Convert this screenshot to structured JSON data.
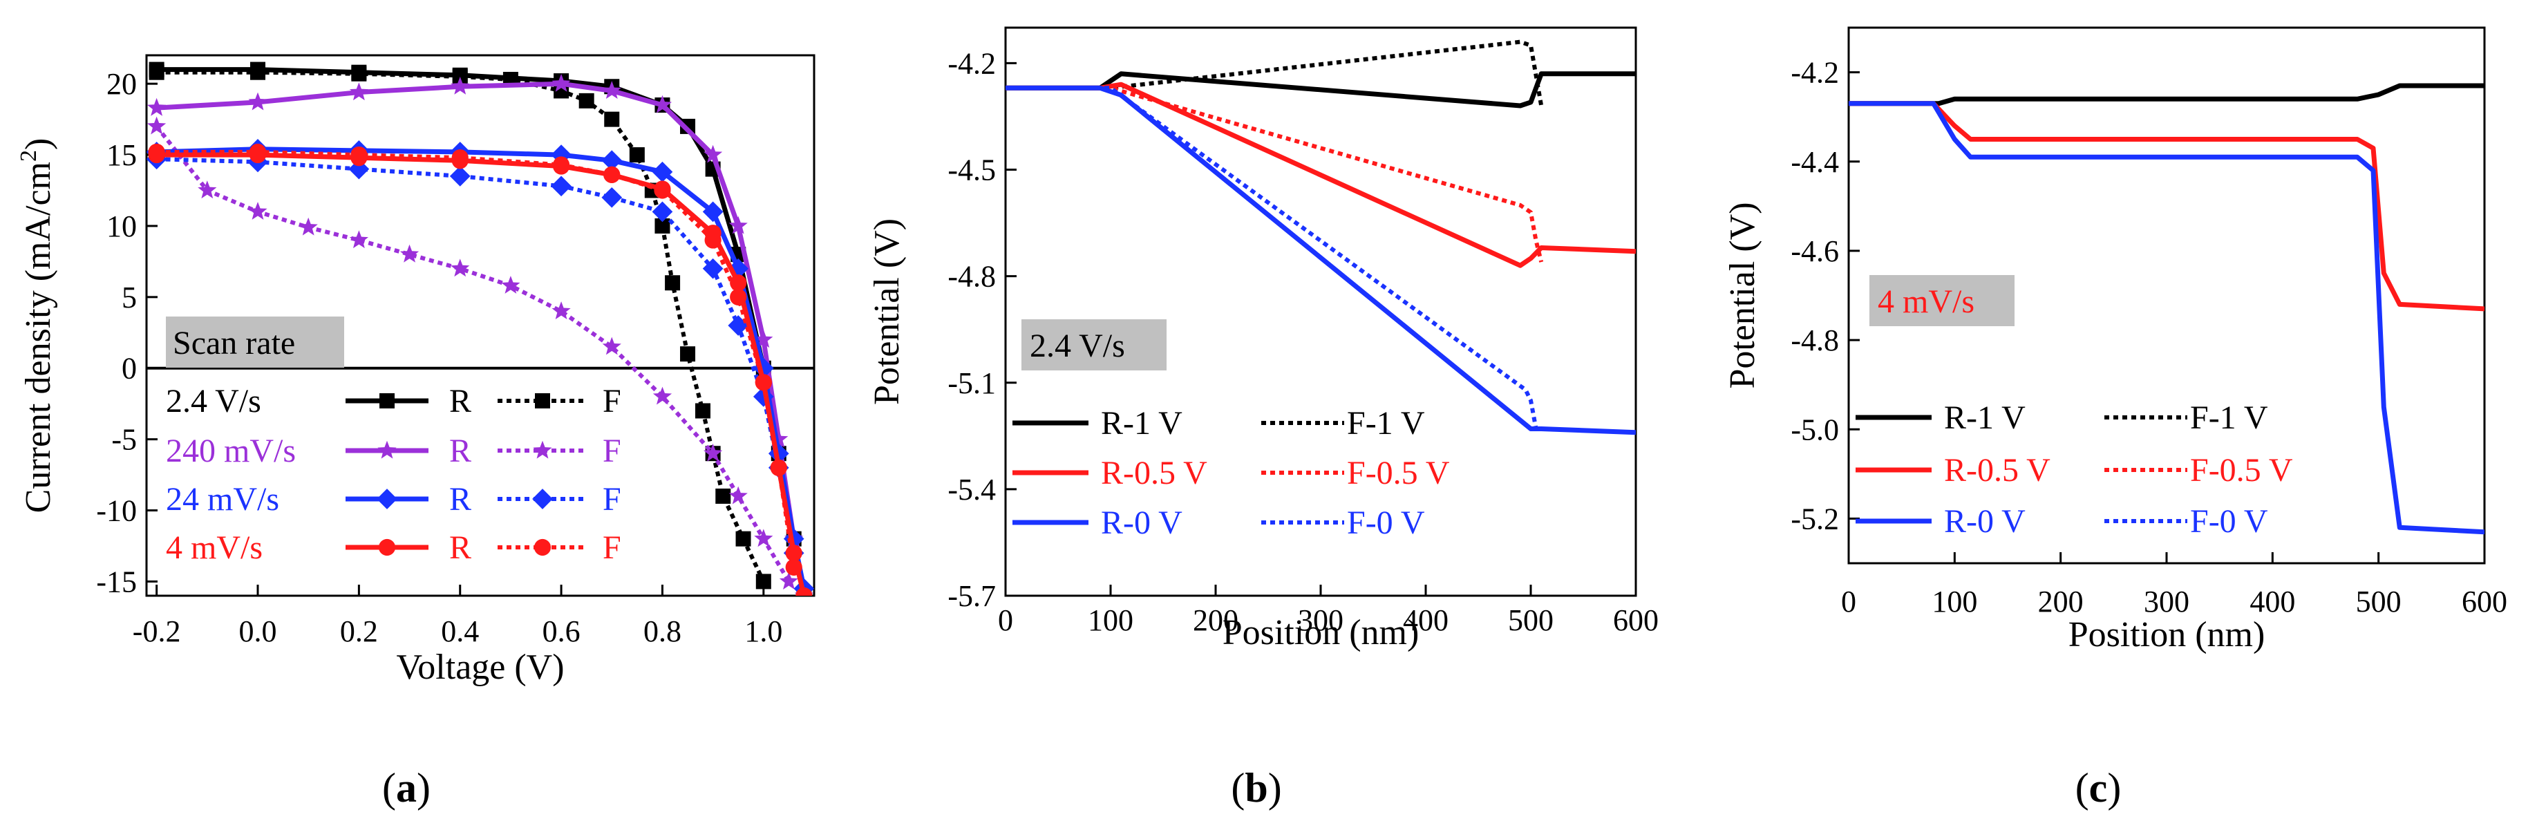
{
  "colors": {
    "black": "#000000",
    "purple": "#9b30d9",
    "blue": "#1a33ff",
    "red": "#ff1a1a",
    "annot_bg": "#c0c0c0"
  },
  "labels": {
    "a": "(a)",
    "b": "(b)",
    "c": "(c)"
  },
  "chart_data": [
    {
      "type": "line",
      "xlabel": "Voltage (V)",
      "ylabel_main": "Current density (mA/cm",
      "ylabel_sup": "2",
      "ylabel_end": ")",
      "xlim": [
        -0.22,
        1.1
      ],
      "ylim": [
        -16,
        22
      ],
      "xticks": [
        -0.2,
        0.0,
        0.2,
        0.4,
        0.6,
        0.8,
        1.0
      ],
      "xtick_labels": [
        "-0.2",
        "0.0",
        "0.2",
        "0.4",
        "0.6",
        "0.8",
        "1.0"
      ],
      "yticks": [
        -15,
        -10,
        -5,
        0,
        5,
        10,
        15,
        20
      ],
      "ytick_labels": [
        "-15",
        "-10",
        "-5",
        "0",
        "5",
        "10",
        "15",
        "20"
      ],
      "zero_line": true,
      "annotation": "Scan rate",
      "legend": [
        {
          "rate": "2.4 V/s",
          "color": "black",
          "r": "R",
          "f": "F",
          "marker": "square"
        },
        {
          "rate": "240 mV/s",
          "color": "purple",
          "r": "R",
          "f": "F",
          "marker": "star"
        },
        {
          "rate": "24 mV/s",
          "color": "blue",
          "r": "R",
          "f": "F",
          "marker": "diamond"
        },
        {
          "rate": "4 mV/s",
          "color": "red",
          "r": "R",
          "f": "F",
          "marker": "circle"
        }
      ],
      "series": [
        {
          "name": "2.4 V/s R",
          "color": "black",
          "style": "solid",
          "marker": "square",
          "x": [
            -0.2,
            0,
            0.2,
            0.4,
            0.6,
            0.7,
            0.8,
            0.85,
            0.9,
            0.95,
            1.0,
            1.03,
            1.06,
            1.08
          ],
          "y": [
            21,
            21,
            20.8,
            20.6,
            20.2,
            19.8,
            18.5,
            17,
            14,
            8,
            0,
            -6,
            -12,
            -16
          ]
        },
        {
          "name": "2.4 V/s F",
          "color": "black",
          "style": "dotted",
          "marker": "square",
          "x": [
            -0.2,
            0,
            0.2,
            0.4,
            0.5,
            0.6,
            0.65,
            0.7,
            0.75,
            0.78,
            0.8,
            0.82,
            0.85,
            0.88,
            0.9,
            0.92,
            0.96,
            1.0
          ],
          "y": [
            20.8,
            20.8,
            20.7,
            20.5,
            20.3,
            19.5,
            18.8,
            17.5,
            15,
            12.5,
            10,
            6,
            1,
            -3,
            -6,
            -9,
            -12,
            -15
          ]
        },
        {
          "name": "240 mV/s R",
          "color": "purple",
          "style": "solid",
          "marker": "star",
          "x": [
            -0.2,
            0,
            0.2,
            0.4,
            0.6,
            0.7,
            0.8,
            0.9,
            0.95,
            1.0,
            1.03,
            1.06,
            1.08
          ],
          "y": [
            18.3,
            18.7,
            19.4,
            19.8,
            20,
            19.5,
            18.5,
            15,
            10,
            2,
            -5,
            -12,
            -16
          ]
        },
        {
          "name": "240 mV/s F",
          "color": "purple",
          "style": "dotted",
          "marker": "star",
          "x": [
            -0.2,
            -0.1,
            0,
            0.1,
            0.2,
            0.3,
            0.4,
            0.5,
            0.6,
            0.7,
            0.8,
            0.9,
            0.95,
            1.0,
            1.05
          ],
          "y": [
            17,
            12.5,
            11,
            9.9,
            9,
            8,
            7,
            5.8,
            4,
            1.5,
            -2,
            -6,
            -9,
            -12,
            -15
          ]
        },
        {
          "name": "24 mV/s R",
          "color": "blue",
          "style": "solid",
          "marker": "diamond",
          "x": [
            -0.2,
            0,
            0.2,
            0.4,
            0.6,
            0.7,
            0.8,
            0.9,
            0.95,
            1.0,
            1.03,
            1.06,
            1.08
          ],
          "y": [
            15.2,
            15.4,
            15.3,
            15.2,
            15,
            14.6,
            13.8,
            11,
            7,
            0,
            -6,
            -12,
            -15.5
          ]
        },
        {
          "name": "24 mV/s F",
          "color": "blue",
          "style": "dotted",
          "marker": "diamond",
          "x": [
            -0.2,
            0,
            0.2,
            0.4,
            0.6,
            0.7,
            0.8,
            0.9,
            0.95,
            1.0,
            1.03,
            1.06
          ],
          "y": [
            14.7,
            14.5,
            14,
            13.5,
            12.8,
            12,
            11,
            7,
            3,
            -2,
            -7,
            -13
          ]
        },
        {
          "name": "4 mV/s R",
          "color": "red",
          "style": "solid",
          "marker": "circle",
          "x": [
            -0.2,
            0,
            0.2,
            0.4,
            0.6,
            0.7,
            0.8,
            0.9,
            0.95,
            1.0,
            1.03,
            1.06,
            1.08
          ],
          "y": [
            15,
            15,
            14.8,
            14.6,
            14.2,
            13.6,
            12.6,
            9.5,
            6,
            -1,
            -7,
            -13,
            -16
          ]
        },
        {
          "name": "4 mV/s F",
          "color": "red",
          "style": "dotted",
          "marker": "circle",
          "x": [
            -0.2,
            0,
            0.2,
            0.4,
            0.6,
            0.7,
            0.8,
            0.9,
            0.95,
            1.0,
            1.03,
            1.06
          ],
          "y": [
            15.2,
            15.2,
            15,
            14.8,
            14.3,
            13.6,
            12.5,
            9,
            5,
            -1,
            -7,
            -14
          ]
        }
      ]
    },
    {
      "type": "line",
      "xlabel": "Position (nm)",
      "ylabel": "Potential (V)",
      "xlim": [
        0,
        600
      ],
      "ylim": [
        -5.7,
        -4.1
      ],
      "xticks": [
        0,
        100,
        200,
        300,
        400,
        500,
        600
      ],
      "xtick_labels": [
        "0",
        "100",
        "200",
        "300",
        "400",
        "500",
        "600"
      ],
      "yticks": [
        -4.2,
        -4.5,
        -4.8,
        -5.1,
        -5.4,
        -5.7
      ],
      "ytick_labels": [
        "-4.2",
        "-4.5",
        "-4.8",
        "-5.1",
        "-5.4",
        "-5.7"
      ],
      "annotation": "2.4 V/s",
      "legend": [
        {
          "r": "R-1 V",
          "f": "F-1 V",
          "color": "black"
        },
        {
          "r": "R-0.5 V",
          "f": "F-0.5 V",
          "color": "red"
        },
        {
          "r": "R-0 V",
          "f": "F-0 V",
          "color": "blue"
        }
      ],
      "series": [
        {
          "name": "R-1 V",
          "color": "black",
          "style": "solid",
          "x": [
            0,
            90,
            110,
            490,
            500,
            510,
            600
          ],
          "y": [
            -4.27,
            -4.27,
            -4.23,
            -4.32,
            -4.31,
            -4.23,
            -4.23
          ]
        },
        {
          "name": "F-1 V",
          "color": "black",
          "style": "dotted",
          "x": [
            0,
            100,
            490,
            500,
            510
          ],
          "y": [
            -4.27,
            -4.27,
            -4.14,
            -4.15,
            -4.32
          ]
        },
        {
          "name": "R-0.5 V",
          "color": "red",
          "style": "solid",
          "x": [
            0,
            90,
            110,
            490,
            500,
            510,
            600
          ],
          "y": [
            -4.27,
            -4.27,
            -4.26,
            -4.77,
            -4.75,
            -4.72,
            -4.73
          ]
        },
        {
          "name": "F-0.5 V",
          "color": "red",
          "style": "dotted",
          "x": [
            0,
            100,
            490,
            500,
            505,
            510
          ],
          "y": [
            -4.27,
            -4.27,
            -4.6,
            -4.62,
            -4.7,
            -4.76
          ]
        },
        {
          "name": "R-0 V",
          "color": "blue",
          "style": "solid",
          "x": [
            0,
            90,
            110,
            500,
            510,
            600
          ],
          "y": [
            -4.27,
            -4.27,
            -4.29,
            -5.23,
            -5.23,
            -5.24
          ]
        },
        {
          "name": "F-0 V",
          "color": "blue",
          "style": "dotted",
          "x": [
            0,
            100,
            495,
            500,
            505
          ],
          "y": [
            -4.27,
            -4.27,
            -5.12,
            -5.15,
            -5.23
          ]
        }
      ]
    },
    {
      "type": "line",
      "xlabel": "Position (nm)",
      "ylabel": "Potential (V)",
      "xlim": [
        0,
        600
      ],
      "ylim": [
        -5.3,
        -4.1
      ],
      "xticks": [
        0,
        100,
        200,
        300,
        400,
        500,
        600
      ],
      "xtick_labels": [
        "0",
        "100",
        "200",
        "300",
        "400",
        "500",
        "600"
      ],
      "yticks": [
        -4.2,
        -4.4,
        -4.6,
        -4.8,
        -5.0,
        -5.2
      ],
      "ytick_labels": [
        "-4.2",
        "-4.4",
        "-4.6",
        "-4.8",
        "-5.0",
        "-5.2"
      ],
      "annotation": "4 mV/s",
      "legend": [
        {
          "r": "R-1 V",
          "f": "F-1 V",
          "color": "black"
        },
        {
          "r": "R-0.5 V",
          "f": "F-0.5 V",
          "color": "red"
        },
        {
          "r": "R-0 V",
          "f": "F-0 V",
          "color": "blue"
        }
      ],
      "series": [
        {
          "name": "F-1 V",
          "color": "black",
          "style": "dotted",
          "x": [
            0,
            85,
            100,
            480,
            500,
            520,
            600
          ],
          "y": [
            -4.27,
            -4.27,
            -4.26,
            -4.26,
            -4.25,
            -4.23,
            -4.23
          ]
        },
        {
          "name": "R-1 V",
          "color": "black",
          "style": "solid",
          "x": [
            0,
            85,
            100,
            480,
            500,
            520,
            600
          ],
          "y": [
            -4.27,
            -4.27,
            -4.26,
            -4.26,
            -4.25,
            -4.23,
            -4.23
          ]
        },
        {
          "name": "F-0.5 V",
          "color": "red",
          "style": "dotted",
          "x": [
            0,
            80,
            100,
            115,
            480,
            495,
            505,
            520,
            600
          ],
          "y": [
            -4.27,
            -4.27,
            -4.32,
            -4.35,
            -4.35,
            -4.37,
            -4.65,
            -4.72,
            -4.73
          ]
        },
        {
          "name": "R-0.5 V",
          "color": "red",
          "style": "solid",
          "x": [
            0,
            80,
            100,
            115,
            480,
            495,
            505,
            520,
            600
          ],
          "y": [
            -4.27,
            -4.27,
            -4.32,
            -4.35,
            -4.35,
            -4.37,
            -4.65,
            -4.72,
            -4.73
          ]
        },
        {
          "name": "F-0 V",
          "color": "blue",
          "style": "dotted",
          "x": [
            0,
            80,
            100,
            115,
            480,
            495,
            505,
            520,
            600
          ],
          "y": [
            -4.27,
            -4.27,
            -4.35,
            -4.39,
            -4.39,
            -4.42,
            -4.95,
            -5.22,
            -5.23
          ]
        },
        {
          "name": "R-0 V",
          "color": "blue",
          "style": "solid",
          "x": [
            0,
            80,
            100,
            115,
            480,
            495,
            505,
            520,
            600
          ],
          "y": [
            -4.27,
            -4.27,
            -4.35,
            -4.39,
            -4.39,
            -4.42,
            -4.95,
            -5.22,
            -5.23
          ]
        }
      ]
    }
  ]
}
